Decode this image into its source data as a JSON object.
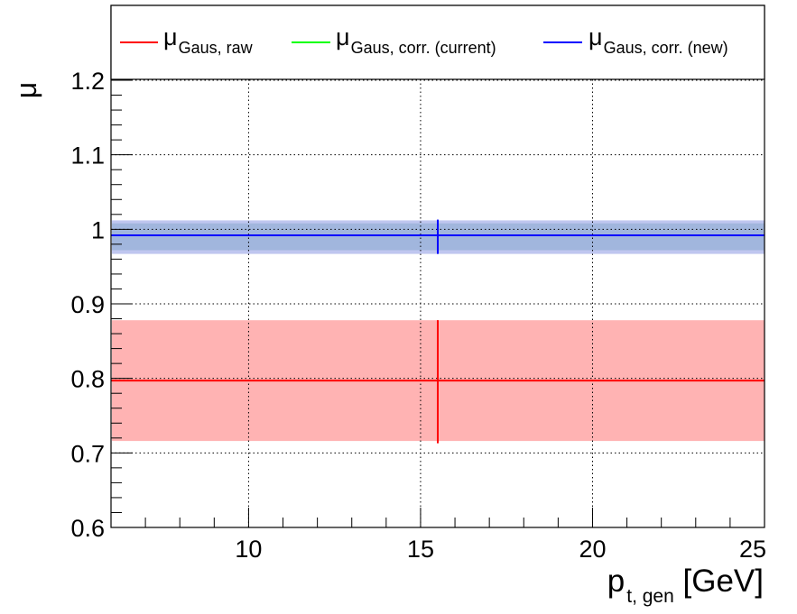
{
  "chart_data": {
    "type": "line",
    "xlabel": {
      "main": "p",
      "sub": "t, gen",
      "unit": " [GeV]"
    },
    "ylabel": "μ",
    "xlim": [
      6,
      25
    ],
    "ylim": [
      0.6,
      1.3
    ],
    "x_ticks": [
      10,
      15,
      20,
      25
    ],
    "x_tick_labels": [
      "10",
      "15",
      "20",
      "25"
    ],
    "y_ticks": [
      0.6,
      0.7,
      0.8,
      0.9,
      1.0,
      1.1,
      1.2
    ],
    "y_tick_labels": [
      "0.6",
      "0.7",
      "0.8",
      "0.9",
      "1",
      "1.1",
      "1.2"
    ],
    "grid": true,
    "legend_placement": "top",
    "series": [
      {
        "name": "μ",
        "name_sub": "Gaus, raw",
        "color": "#ff0000",
        "band_color": "#ffb3b3",
        "x_range": [
          6,
          25
        ],
        "y": 0.797,
        "y_band": [
          0.716,
          0.878
        ],
        "point_x": 15.5,
        "point_y_err": [
          0.713,
          0.878
        ]
      },
      {
        "name": "μ",
        "name_sub": "Gaus, corr. (current)",
        "color": "#00ff00",
        "band_color": "#74b5ad",
        "x_range": [
          6,
          25
        ],
        "y": 0.992,
        "y_band": [
          0.972,
          1.008
        ],
        "point_x": 15.5,
        "point_y_err": [
          0.972,
          1.008
        ]
      },
      {
        "name": "μ",
        "name_sub": "Gaus, corr. (new)",
        "color": "#0000ff",
        "band_color": "#a9b3ea",
        "x_range": [
          6,
          25
        ],
        "y": 0.992,
        "y_band": [
          0.967,
          1.012
        ],
        "point_x": 15.5,
        "point_y_err": [
          0.967,
          1.013
        ]
      }
    ]
  }
}
